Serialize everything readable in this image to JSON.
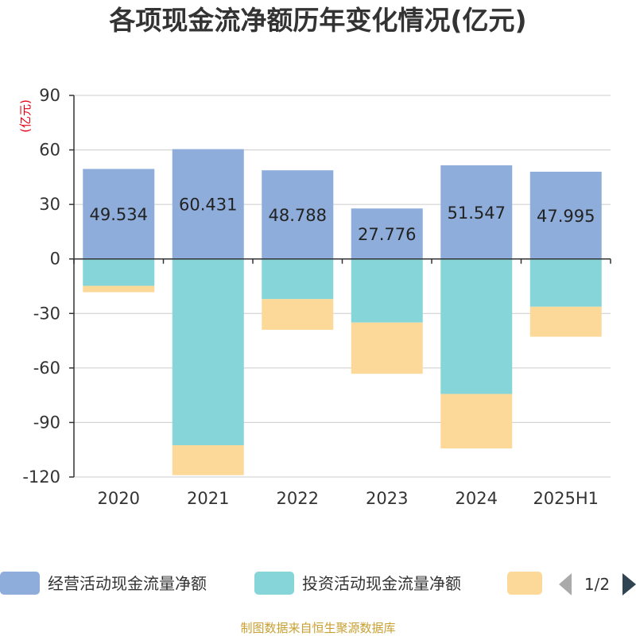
{
  "title": "各项现金流净额历年变化情况(亿元)",
  "unit": "(亿元)",
  "source": "制图数据来自恒生聚源数据库",
  "legend_page": "1/2",
  "colors": {
    "operating": "#8eaddb",
    "investing": "#86d5d9",
    "financing": "#fdd999",
    "unit_label": "#e60012",
    "source": "#c8a032"
  },
  "chart_data": {
    "type": "bar",
    "stacked": true,
    "categories": [
      "2020",
      "2021",
      "2022",
      "2023",
      "2024",
      "2025H1"
    ],
    "ylim": [
      -120,
      90
    ],
    "yticks": [
      90,
      60,
      30,
      0,
      -30,
      -60,
      -90,
      -120
    ],
    "ylabel": "(亿元)",
    "grid": true,
    "legend_position": "bottom",
    "series": [
      {
        "name": "经营活动现金流量净额",
        "key": "operating",
        "values": [
          49.534,
          60.431,
          48.788,
          27.776,
          51.547,
          47.995
        ],
        "labels": [
          "49.534",
          "60.431",
          "48.788",
          "27.776",
          "51.547",
          "47.995"
        ]
      },
      {
        "name": "投资活动现金流量净额",
        "key": "investing",
        "values": [
          -14.8,
          -102.5,
          -22.1,
          -35.0,
          -74.3,
          -26.3
        ]
      },
      {
        "name": "",
        "key": "financing",
        "values": [
          -3.5,
          -16.5,
          -16.9,
          -28.2,
          -30.0,
          -16.5
        ]
      }
    ]
  }
}
